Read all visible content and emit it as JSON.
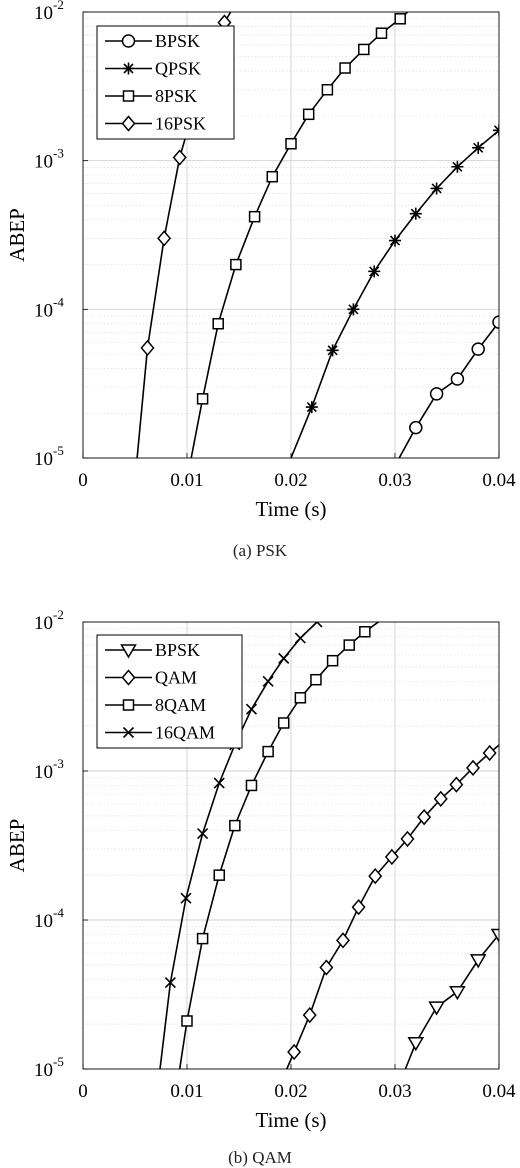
{
  "figure": {
    "captions": [
      "(a) PSK",
      "(b) QAM"
    ]
  },
  "chart_data": [
    {
      "type": "line",
      "panel_label": "(a) PSK",
      "xlabel": "Time (s)",
      "ylabel": "ABEP",
      "xlim": [
        0,
        0.04
      ],
      "ylim": [
        1e-05,
        0.01
      ],
      "yscale": "log",
      "xticks": [
        "0",
        "0.01",
        "0.02",
        "0.03",
        "0.04"
      ],
      "yticks": [
        {
          "base": "10",
          "exp": "-5"
        },
        {
          "base": "10",
          "exp": "-4"
        },
        {
          "base": "10",
          "exp": "-3"
        },
        {
          "base": "10",
          "exp": "-2"
        }
      ],
      "grid": true,
      "legend_position": "top-left",
      "series": [
        {
          "name": "BPSK",
          "marker": "circle",
          "line": [
            [
              0.0304,
              1e-05
            ],
            [
              0.032,
              1.6e-05
            ],
            [
              0.034,
              2.7e-05
            ],
            [
              0.036,
              3.4e-05
            ],
            [
              0.038,
              5.4e-05
            ],
            [
              0.04,
              8.2e-05
            ]
          ],
          "markers": [
            [
              0.032,
              1.6e-05
            ],
            [
              0.034,
              2.7e-05
            ],
            [
              0.036,
              3.4e-05
            ],
            [
              0.038,
              5.4e-05
            ],
            [
              0.04,
              8.2e-05
            ]
          ]
        },
        {
          "name": "QPSK",
          "marker": "asterisk",
          "line": [
            [
              0.02,
              1e-05
            ],
            [
              0.022,
              2.2e-05
            ],
            [
              0.024,
              5.3e-05
            ],
            [
              0.026,
              0.0001
            ],
            [
              0.028,
              0.00018
            ],
            [
              0.03,
              0.00029
            ],
            [
              0.032,
              0.00044
            ],
            [
              0.034,
              0.00065
            ],
            [
              0.036,
              0.00091
            ],
            [
              0.038,
              0.00122
            ],
            [
              0.04,
              0.0016
            ]
          ],
          "markers": [
            [
              0.022,
              2.2e-05
            ],
            [
              0.024,
              5.3e-05
            ],
            [
              0.026,
              0.0001
            ],
            [
              0.028,
              0.00018
            ],
            [
              0.03,
              0.00029
            ],
            [
              0.032,
              0.00044
            ],
            [
              0.034,
              0.00065
            ],
            [
              0.036,
              0.00091
            ],
            [
              0.038,
              0.00122
            ],
            [
              0.04,
              0.0016
            ]
          ]
        },
        {
          "name": "8PSK",
          "marker": "square",
          "line": [
            [
              0.0104,
              1e-05
            ],
            [
              0.0115,
              2.5e-05
            ],
            [
              0.013,
              8e-05
            ],
            [
              0.0147,
              0.0002
            ],
            [
              0.0165,
              0.00042
            ],
            [
              0.0182,
              0.00078
            ],
            [
              0.02,
              0.0013
            ],
            [
              0.0217,
              0.00205
            ],
            [
              0.0235,
              0.003
            ],
            [
              0.0252,
              0.0042
            ],
            [
              0.027,
              0.0056
            ],
            [
              0.0287,
              0.0072
            ],
            [
              0.0305,
              0.009
            ],
            [
              0.0312,
              0.01
            ]
          ],
          "markers": [
            [
              0.0115,
              2.5e-05
            ],
            [
              0.013,
              8e-05
            ],
            [
              0.0147,
              0.0002
            ],
            [
              0.0165,
              0.00042
            ],
            [
              0.0182,
              0.00078
            ],
            [
              0.02,
              0.0013
            ],
            [
              0.0217,
              0.00205
            ],
            [
              0.0235,
              0.003
            ],
            [
              0.0252,
              0.0042
            ],
            [
              0.027,
              0.0056
            ],
            [
              0.0287,
              0.0072
            ],
            [
              0.0305,
              0.009
            ]
          ]
        },
        {
          "name": "16PSK",
          "marker": "diamond",
          "line": [
            [
              0.0052,
              1e-05
            ],
            [
              0.0062,
              5.5e-05
            ],
            [
              0.0078,
              0.0003
            ],
            [
              0.0093,
              0.00105
            ],
            [
              0.012,
              0.0048
            ],
            [
              0.0136,
              0.0085
            ],
            [
              0.0142,
              0.01
            ]
          ],
          "markers": [
            [
              0.0062,
              5.5e-05
            ],
            [
              0.0078,
              0.0003
            ],
            [
              0.0093,
              0.00105
            ],
            [
              0.0136,
              0.0085
            ]
          ]
        }
      ]
    },
    {
      "type": "line",
      "panel_label": "(b) QAM",
      "xlabel": "Time (s)",
      "ylabel": "ABEP",
      "xlim": [
        0,
        0.04
      ],
      "ylim": [
        1e-05,
        0.01
      ],
      "yscale": "log",
      "xticks": [
        "0",
        "0.01",
        "0.02",
        "0.03",
        "0.04"
      ],
      "yticks": [
        {
          "base": "10",
          "exp": "-5"
        },
        {
          "base": "10",
          "exp": "-4"
        },
        {
          "base": "10",
          "exp": "-3"
        },
        {
          "base": "10",
          "exp": "-2"
        }
      ],
      "grid": true,
      "legend_position": "top-left",
      "series": [
        {
          "name": "BPSK",
          "marker": "triangle-down",
          "line": [
            [
              0.031,
              1e-05
            ],
            [
              0.032,
              1.5e-05
            ],
            [
              0.034,
              2.6e-05
            ],
            [
              0.036,
              3.3e-05
            ],
            [
              0.038,
              5.4e-05
            ],
            [
              0.04,
              8e-05
            ]
          ],
          "markers": [
            [
              0.032,
              1.5e-05
            ],
            [
              0.034,
              2.6e-05
            ],
            [
              0.036,
              3.3e-05
            ],
            [
              0.038,
              5.4e-05
            ],
            [
              0.04,
              8e-05
            ]
          ]
        },
        {
          "name": "QAM",
          "marker": "diamond",
          "line": [
            [
              0.0196,
              1e-05
            ],
            [
              0.0203,
              1.3e-05
            ],
            [
              0.0218,
              2.3e-05
            ],
            [
              0.0234,
              4.8e-05
            ],
            [
              0.025,
              7.3e-05
            ],
            [
              0.0265,
              0.000122
            ],
            [
              0.0281,
              0.000197
            ],
            [
              0.0297,
              0.000265
            ],
            [
              0.0312,
              0.00035
            ],
            [
              0.0328,
              0.00049
            ],
            [
              0.0344,
              0.00065
            ],
            [
              0.0359,
              0.00081
            ],
            [
              0.0375,
              0.00105
            ],
            [
              0.0391,
              0.00132
            ],
            [
              0.0406,
              0.00162
            ]
          ],
          "markers": [
            [
              0.0203,
              1.3e-05
            ],
            [
              0.0218,
              2.3e-05
            ],
            [
              0.0234,
              4.8e-05
            ],
            [
              0.025,
              7.3e-05
            ],
            [
              0.0265,
              0.000122
            ],
            [
              0.0281,
              0.000197
            ],
            [
              0.0297,
              0.000265
            ],
            [
              0.0312,
              0.00035
            ],
            [
              0.0328,
              0.00049
            ],
            [
              0.0344,
              0.00065
            ],
            [
              0.0359,
              0.00081
            ],
            [
              0.0375,
              0.00105
            ],
            [
              0.0391,
              0.00132
            ],
            [
              0.0406,
              0.00162
            ]
          ]
        },
        {
          "name": "8QAM",
          "marker": "square",
          "line": [
            [
              0.0093,
              1e-05
            ],
            [
              0.01,
              2.1e-05
            ],
            [
              0.0115,
              7.5e-05
            ],
            [
              0.0131,
              0.0002
            ],
            [
              0.0146,
              0.00043
            ],
            [
              0.0162,
              0.0008
            ],
            [
              0.0178,
              0.00135
            ],
            [
              0.0193,
              0.0021
            ],
            [
              0.0209,
              0.0031
            ],
            [
              0.0224,
              0.0041
            ],
            [
              0.024,
              0.0055
            ],
            [
              0.0256,
              0.007
            ],
            [
              0.0271,
              0.0086
            ],
            [
              0.0284,
              0.01
            ]
          ],
          "markers": [
            [
              0.01,
              2.1e-05
            ],
            [
              0.0115,
              7.5e-05
            ],
            [
              0.0131,
              0.0002
            ],
            [
              0.0146,
              0.00043
            ],
            [
              0.0162,
              0.0008
            ],
            [
              0.0178,
              0.00135
            ],
            [
              0.0193,
              0.0021
            ],
            [
              0.0209,
              0.0031
            ],
            [
              0.0224,
              0.0041
            ],
            [
              0.024,
              0.0055
            ],
            [
              0.0256,
              0.007
            ],
            [
              0.0271,
              0.0086
            ]
          ]
        },
        {
          "name": "16QAM",
          "marker": "x",
          "line": [
            [
              0.0074,
              1e-05
            ],
            [
              0.0084,
              3.8e-05
            ],
            [
              0.0099,
              0.00014
            ],
            [
              0.0115,
              0.00038
            ],
            [
              0.0131,
              0.00083
            ],
            [
              0.0146,
              0.0015
            ],
            [
              0.0162,
              0.0026
            ],
            [
              0.0178,
              0.004
            ],
            [
              0.0193,
              0.0057
            ],
            [
              0.0209,
              0.0078
            ],
            [
              0.0225,
              0.01
            ]
          ],
          "markers": [
            [
              0.0084,
              3.8e-05
            ],
            [
              0.0099,
              0.00014
            ],
            [
              0.0115,
              0.00038
            ],
            [
              0.0131,
              0.00083
            ],
            [
              0.0146,
              0.0015
            ],
            [
              0.0162,
              0.0026
            ],
            [
              0.0178,
              0.004
            ],
            [
              0.0193,
              0.0057
            ],
            [
              0.0209,
              0.0078
            ],
            [
              0.0225,
              0.01
            ]
          ]
        }
      ]
    }
  ]
}
